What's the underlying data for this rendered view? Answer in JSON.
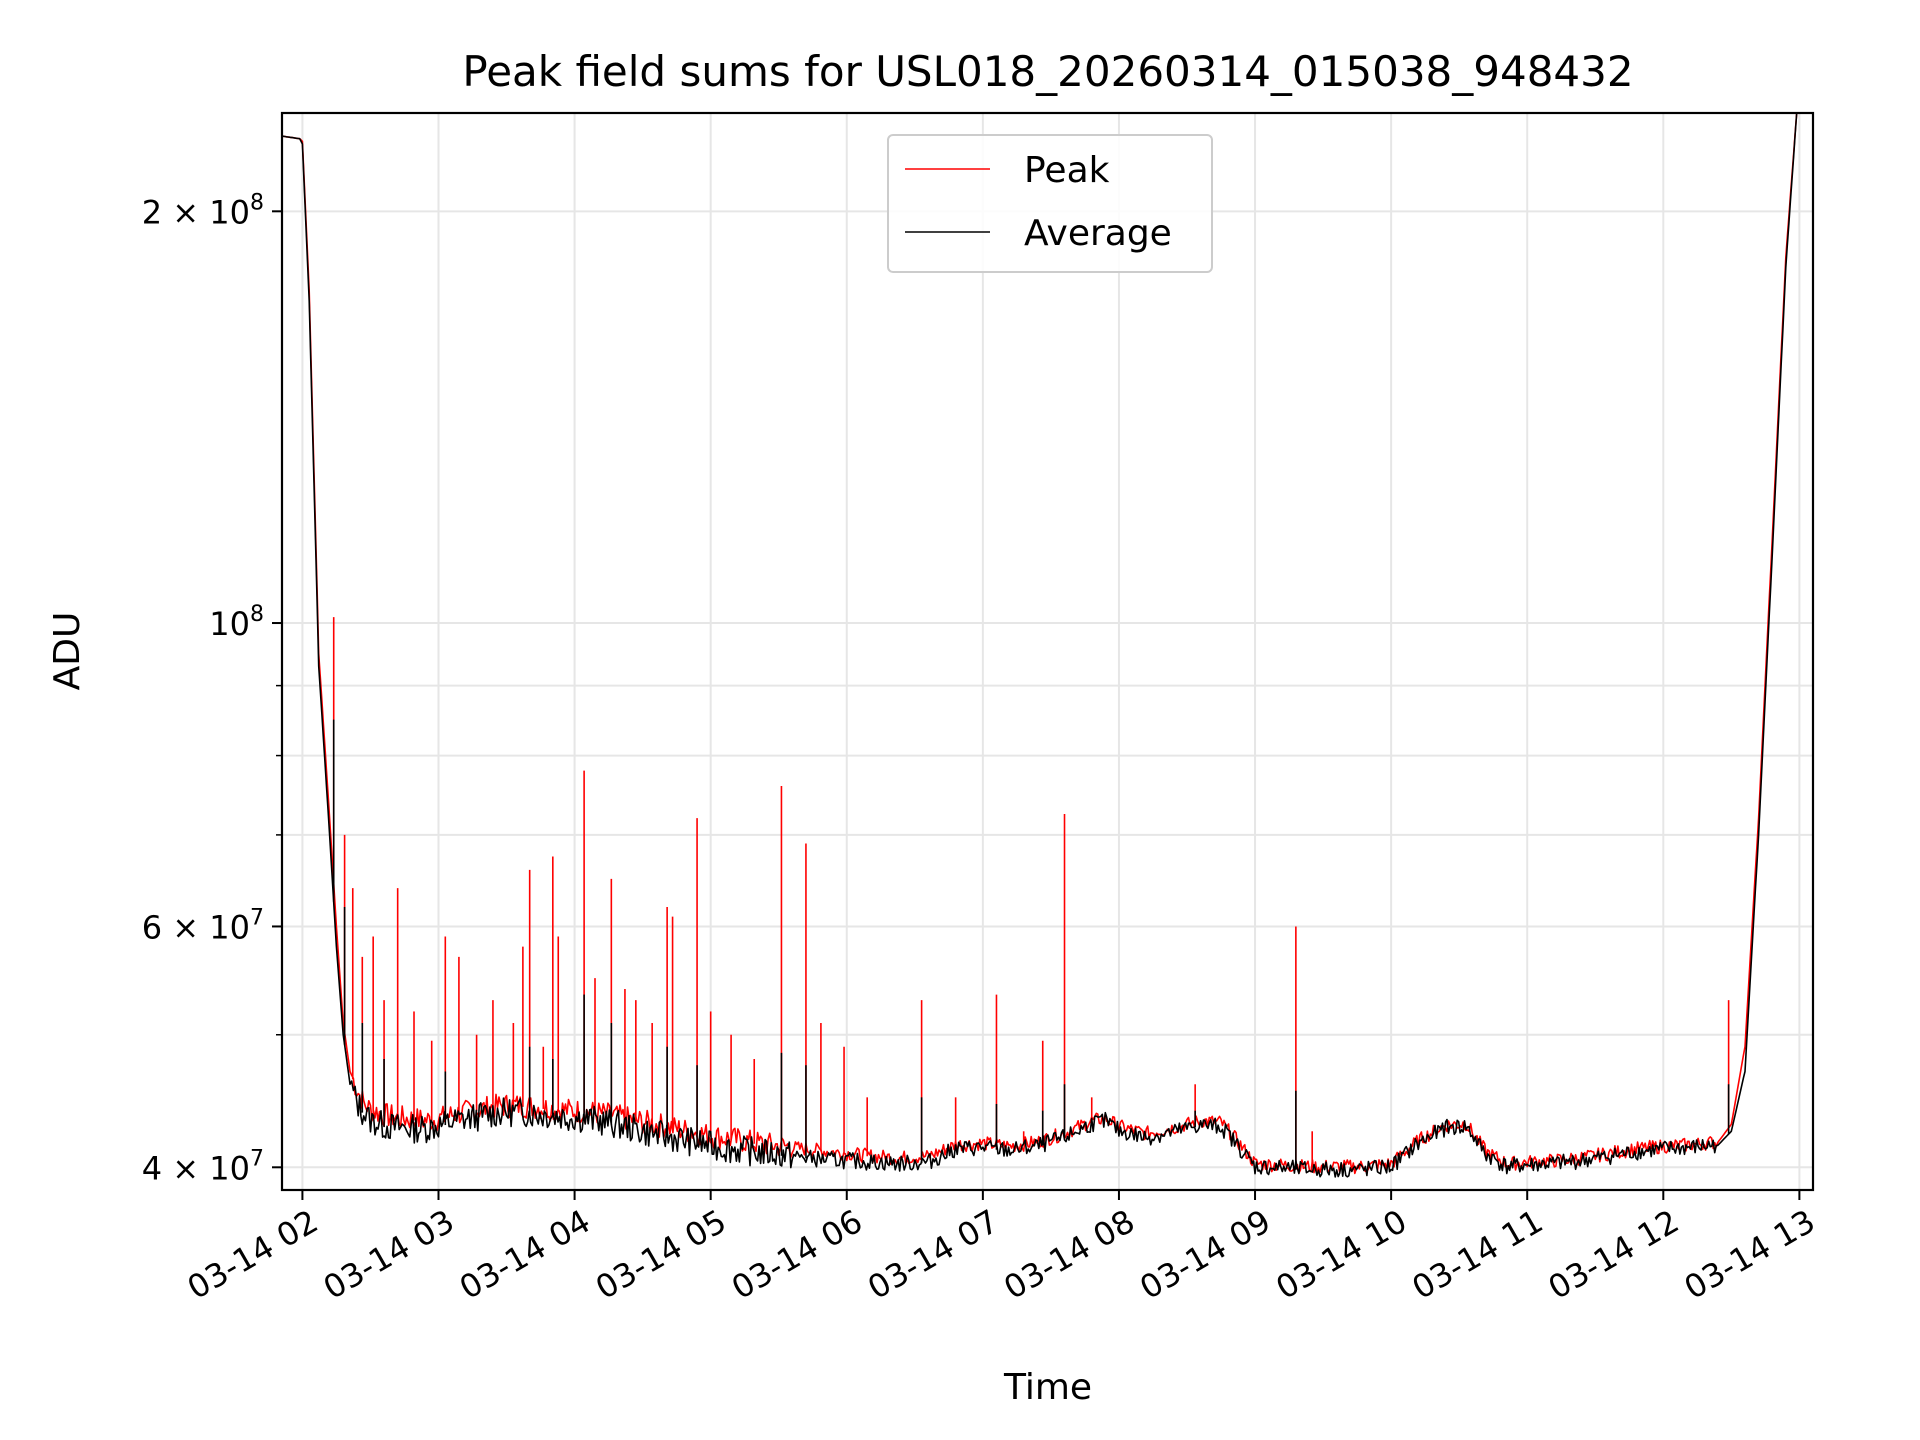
{
  "chart_data": {
    "type": "line",
    "title": "Peak field sums for USL018_20260314_015038_948432",
    "xlabel": "Time",
    "ylabel": "ADU",
    "yscale": "log",
    "ylim": [
      38500000,
      236000000
    ],
    "xlim_hours": [
      1.85,
      13.1
    ],
    "grid": true,
    "legend_position": "top-center",
    "x_ticks": [
      {
        "hour": 2,
        "label": "03-14 02"
      },
      {
        "hour": 3,
        "label": "03-14 03"
      },
      {
        "hour": 4,
        "label": "03-14 04"
      },
      {
        "hour": 5,
        "label": "03-14 05"
      },
      {
        "hour": 6,
        "label": "03-14 06"
      },
      {
        "hour": 7,
        "label": "03-14 07"
      },
      {
        "hour": 8,
        "label": "03-14 08"
      },
      {
        "hour": 9,
        "label": "03-14 09"
      },
      {
        "hour": 10,
        "label": "03-14 10"
      },
      {
        "hour": 11,
        "label": "03-14 11"
      },
      {
        "hour": 12,
        "label": "03-14 12"
      },
      {
        "hour": 13,
        "label": "03-14 13"
      }
    ],
    "y_ticks": [
      {
        "value": 40000000,
        "base": "4 × 10",
        "exp": "7"
      },
      {
        "value": 60000000,
        "base": "6 × 10",
        "exp": "7"
      },
      {
        "value": 100000000,
        "base": "10",
        "exp": "8"
      },
      {
        "value": 200000000,
        "base": "2 × 10",
        "exp": "8"
      }
    ],
    "series": [
      {
        "name": "Peak",
        "color": "#ff0000",
        "x": [
          1.85,
          1.98,
          2.0,
          2.05,
          2.12,
          2.2,
          2.25,
          2.3,
          2.35,
          2.4,
          2.45,
          2.5,
          2.6,
          2.7,
          2.8,
          2.9,
          3.0,
          3.1,
          3.2,
          3.3,
          3.4,
          3.5,
          3.6,
          3.7,
          3.8,
          3.9,
          4.0,
          4.1,
          4.2,
          4.3,
          4.4,
          4.5,
          4.6,
          4.7,
          4.8,
          4.9,
          5.0,
          5.2,
          5.4,
          5.6,
          5.8,
          6.0,
          6.2,
          6.4,
          6.6,
          6.8,
          7.0,
          7.2,
          7.4,
          7.6,
          7.8,
          7.9,
          8.0,
          8.2,
          8.4,
          8.6,
          8.75,
          8.85,
          9.0,
          9.2,
          9.4,
          9.6,
          9.8,
          10.0,
          10.2,
          10.4,
          10.55,
          10.7,
          10.85,
          11.0,
          11.2,
          11.4,
          11.6,
          11.8,
          12.0,
          12.2,
          12.4,
          12.5,
          12.6,
          12.7,
          12.8,
          12.9,
          12.98
        ],
        "y": [
          227000000,
          226000000,
          225000000,
          175000000,
          95000000,
          72000000,
          60000000,
          51000000,
          47000000,
          45500000,
          44500000,
          44000000,
          43600000,
          43400000,
          43300000,
          43200000,
          43300000,
          43600000,
          43800000,
          44000000,
          44200000,
          44300000,
          44300000,
          44200000,
          44100000,
          44000000,
          43900000,
          43800000,
          43700000,
          43500000,
          43300000,
          43100000,
          42900000,
          42700000,
          42500000,
          42300000,
          42100000,
          41800000,
          41500000,
          41300000,
          41100000,
          40900000,
          40700000,
          40600000,
          40700000,
          41500000,
          41600000,
          41400000,
          41700000,
          42300000,
          43200000,
          43400000,
          42800000,
          42300000,
          42700000,
          43200000,
          43100000,
          42000000,
          40200000,
          40100000,
          40000000,
          40000000,
          40000000,
          40200000,
          41800000,
          42900000,
          43000000,
          41000000,
          40200000,
          40300000,
          40400000,
          40600000,
          40900000,
          41200000,
          41400000,
          41500000,
          41700000,
          43000000,
          49000000,
          72000000,
          115000000,
          185000000,
          236000000
        ],
        "spikes": [
          {
            "x": 2.23,
            "y": 101000000
          },
          {
            "x": 2.31,
            "y": 70000000
          },
          {
            "x": 2.37,
            "y": 64000000
          },
          {
            "x": 2.44,
            "y": 57000000
          },
          {
            "x": 2.52,
            "y": 59000000
          },
          {
            "x": 2.6,
            "y": 53000000
          },
          {
            "x": 2.7,
            "y": 64000000
          },
          {
            "x": 2.82,
            "y": 52000000
          },
          {
            "x": 2.95,
            "y": 49500000
          },
          {
            "x": 3.05,
            "y": 59000000
          },
          {
            "x": 3.15,
            "y": 57000000
          },
          {
            "x": 3.28,
            "y": 50000000
          },
          {
            "x": 3.4,
            "y": 53000000
          },
          {
            "x": 3.55,
            "y": 51000000
          },
          {
            "x": 3.62,
            "y": 58000000
          },
          {
            "x": 3.67,
            "y": 66000000
          },
          {
            "x": 3.77,
            "y": 49000000
          },
          {
            "x": 3.84,
            "y": 67500000
          },
          {
            "x": 3.88,
            "y": 59000000
          },
          {
            "x": 4.07,
            "y": 78000000
          },
          {
            "x": 4.15,
            "y": 55000000
          },
          {
            "x": 4.27,
            "y": 65000000
          },
          {
            "x": 4.37,
            "y": 54000000
          },
          {
            "x": 4.45,
            "y": 53000000
          },
          {
            "x": 4.57,
            "y": 51000000
          },
          {
            "x": 4.68,
            "y": 62000000
          },
          {
            "x": 4.72,
            "y": 61000000
          },
          {
            "x": 4.9,
            "y": 72000000
          },
          {
            "x": 5.0,
            "y": 52000000
          },
          {
            "x": 5.15,
            "y": 50000000
          },
          {
            "x": 5.32,
            "y": 48000000
          },
          {
            "x": 5.52,
            "y": 76000000
          },
          {
            "x": 5.7,
            "y": 69000000
          },
          {
            "x": 5.81,
            "y": 51000000
          },
          {
            "x": 5.98,
            "y": 49000000
          },
          {
            "x": 6.15,
            "y": 45000000
          },
          {
            "x": 6.55,
            "y": 53000000
          },
          {
            "x": 6.8,
            "y": 45000000
          },
          {
            "x": 7.1,
            "y": 53500000
          },
          {
            "x": 7.3,
            "y": 42500000
          },
          {
            "x": 7.44,
            "y": 49500000
          },
          {
            "x": 7.6,
            "y": 72500000
          },
          {
            "x": 7.8,
            "y": 45000000
          },
          {
            "x": 8.56,
            "y": 46000000
          },
          {
            "x": 9.3,
            "y": 60000000
          },
          {
            "x": 9.42,
            "y": 42500000
          },
          {
            "x": 12.48,
            "y": 53000000
          }
        ]
      },
      {
        "name": "Average",
        "color": "#000000",
        "x": [
          1.85,
          1.98,
          2.0,
          2.05,
          2.12,
          2.2,
          2.25,
          2.3,
          2.35,
          2.4,
          2.45,
          2.5,
          2.6,
          2.7,
          2.8,
          2.9,
          3.0,
          3.1,
          3.2,
          3.3,
          3.4,
          3.5,
          3.6,
          3.7,
          3.8,
          3.9,
          4.0,
          4.1,
          4.2,
          4.3,
          4.4,
          4.5,
          4.6,
          4.7,
          4.8,
          4.9,
          5.0,
          5.2,
          5.4,
          5.6,
          5.8,
          6.0,
          6.2,
          6.4,
          6.6,
          6.8,
          7.0,
          7.2,
          7.4,
          7.6,
          7.8,
          7.9,
          8.0,
          8.2,
          8.4,
          8.6,
          8.75,
          8.85,
          9.0,
          9.2,
          9.4,
          9.6,
          9.8,
          10.0,
          10.2,
          10.4,
          10.55,
          10.7,
          10.85,
          11.0,
          11.2,
          11.4,
          11.6,
          11.8,
          12.0,
          12.2,
          12.4,
          12.5,
          12.6,
          12.7,
          12.8,
          12.9,
          12.98
        ],
        "y": [
          227000000,
          226000000,
          224000000,
          172000000,
          93000000,
          70000000,
          58000000,
          50000000,
          46000000,
          44500000,
          43700000,
          43200000,
          42800000,
          42700000,
          42600000,
          42600000,
          42800000,
          43100000,
          43300000,
          43500000,
          43700000,
          43800000,
          43800000,
          43700000,
          43600000,
          43500000,
          43400000,
          43300000,
          43100000,
          42900000,
          42700000,
          42400000,
          42200000,
          42000000,
          41800000,
          41600000,
          41400000,
          41100000,
          40900000,
          40700000,
          40500000,
          40400000,
          40300000,
          40200000,
          40300000,
          41200000,
          41300000,
          41100000,
          41400000,
          42000000,
          43000000,
          43200000,
          42500000,
          42000000,
          42400000,
          42900000,
          42800000,
          41700000,
          40000000,
          39900000,
          39800000,
          39800000,
          39800000,
          40000000,
          41600000,
          42700000,
          42800000,
          40800000,
          40000000,
          40100000,
          40200000,
          40400000,
          40700000,
          41000000,
          41200000,
          41300000,
          41500000,
          42500000,
          47000000,
          70000000,
          112000000,
          182000000,
          236000000
        ],
        "spikes": [
          {
            "x": 2.23,
            "y": 85000000
          },
          {
            "x": 2.31,
            "y": 62000000
          },
          {
            "x": 2.44,
            "y": 51000000
          },
          {
            "x": 2.6,
            "y": 48000000
          },
          {
            "x": 3.05,
            "y": 47000000
          },
          {
            "x": 3.67,
            "y": 49000000
          },
          {
            "x": 3.84,
            "y": 48000000
          },
          {
            "x": 4.07,
            "y": 53500000
          },
          {
            "x": 4.27,
            "y": 51000000
          },
          {
            "x": 4.68,
            "y": 49000000
          },
          {
            "x": 4.9,
            "y": 47500000
          },
          {
            "x": 5.52,
            "y": 48500000
          },
          {
            "x": 5.7,
            "y": 47500000
          },
          {
            "x": 6.55,
            "y": 45000000
          },
          {
            "x": 7.1,
            "y": 44500000
          },
          {
            "x": 7.44,
            "y": 44000000
          },
          {
            "x": 7.6,
            "y": 46000000
          },
          {
            "x": 8.56,
            "y": 44000000
          },
          {
            "x": 9.3,
            "y": 45500000
          },
          {
            "x": 12.48,
            "y": 46000000
          }
        ]
      }
    ]
  }
}
